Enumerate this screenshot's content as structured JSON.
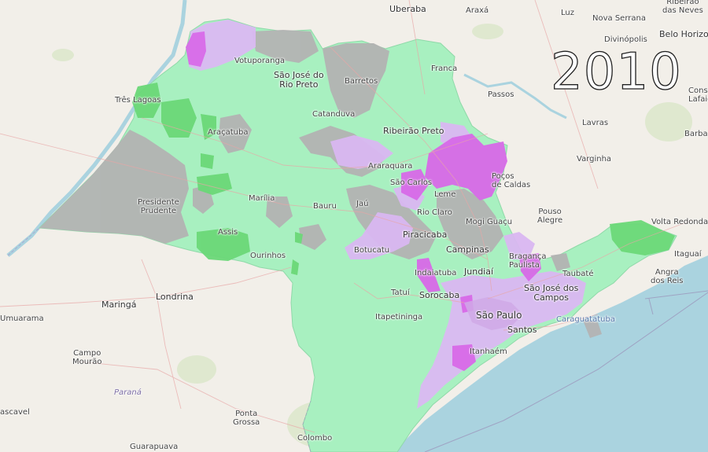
{
  "year": "2010",
  "colors": {
    "background": "#f2efe9",
    "ocean": "#aad3df",
    "light_green": "#a8f0c0",
    "dark_green": "#6bd878",
    "gray": "#b3b3b3",
    "light_purple": "#dab8f2",
    "dark_purple": "#d86ae8",
    "urban": "#d0a9e6"
  },
  "cities": [
    {
      "id": "uberaba",
      "name": "Uberaba",
      "cls": "big"
    },
    {
      "id": "araxa",
      "name": "Araxá",
      "cls": ""
    },
    {
      "id": "luz",
      "name": "Luz",
      "cls": ""
    },
    {
      "id": "nova-serrana",
      "name": "Nova Serrana",
      "cls": ""
    },
    {
      "id": "ribeirao-das-neves",
      "name": "Ribeirão\ndas Neves",
      "cls": "center"
    },
    {
      "id": "divinopolis",
      "name": "Divinópolis",
      "cls": ""
    },
    {
      "id": "belo-horizonte",
      "name": "Belo Horizo",
      "cls": "big"
    },
    {
      "id": "votuporanga",
      "name": "Votuporanga",
      "cls": ""
    },
    {
      "id": "sao-jose-rio-preto",
      "name": "São José do\nRio Preto",
      "cls": "big center"
    },
    {
      "id": "franca",
      "name": "Franca",
      "cls": ""
    },
    {
      "id": "barretos",
      "name": "Barretos",
      "cls": ""
    },
    {
      "id": "passos",
      "name": "Passos",
      "cls": ""
    },
    {
      "id": "conselheiro-lafaiete",
      "name": "Consel\nLafaie",
      "cls": ""
    },
    {
      "id": "tres-lagoas",
      "name": "Três Lagoas",
      "cls": ""
    },
    {
      "id": "catanduva",
      "name": "Catanduva",
      "cls": ""
    },
    {
      "id": "lavras",
      "name": "Lavras",
      "cls": ""
    },
    {
      "id": "barbacena",
      "name": "Barba",
      "cls": ""
    },
    {
      "id": "aracatuba",
      "name": "Araçatuba",
      "cls": ""
    },
    {
      "id": "ribeirao-preto",
      "name": "Ribeirão Preto",
      "cls": "big"
    },
    {
      "id": "varginha",
      "name": "Varginha",
      "cls": ""
    },
    {
      "id": "araraquara",
      "name": "Araraquara",
      "cls": ""
    },
    {
      "id": "sao-carlos",
      "name": "São Carlos",
      "cls": ""
    },
    {
      "id": "pocos-de-caldas",
      "name": "Poços\nde Caldas",
      "cls": ""
    },
    {
      "id": "leme",
      "name": "Leme",
      "cls": ""
    },
    {
      "id": "presidente-prudente",
      "name": "Presidente\nPrudente",
      "cls": "center"
    },
    {
      "id": "marilia",
      "name": "Marília",
      "cls": ""
    },
    {
      "id": "bauru",
      "name": "Bauru",
      "cls": ""
    },
    {
      "id": "jau",
      "name": "Jaú",
      "cls": ""
    },
    {
      "id": "rio-claro",
      "name": "Rio Claro",
      "cls": ""
    },
    {
      "id": "mogi-guacu",
      "name": "Mogi Guaçu",
      "cls": ""
    },
    {
      "id": "pouso-alegre",
      "name": "Pouso\nAlegre",
      "cls": "center"
    },
    {
      "id": "volta-redonda",
      "name": "Volta Redonda",
      "cls": ""
    },
    {
      "id": "assis",
      "name": "Assis",
      "cls": ""
    },
    {
      "id": "piracicaba",
      "name": "Piracicaba",
      "cls": "big"
    },
    {
      "id": "ourinhos",
      "name": "Ourinhos",
      "cls": ""
    },
    {
      "id": "botucatu",
      "name": "Botucatu",
      "cls": ""
    },
    {
      "id": "campinas",
      "name": "Campinas",
      "cls": "big"
    },
    {
      "id": "braganca-paulista",
      "name": "Bragança\nPaulista",
      "cls": ""
    },
    {
      "id": "itaguai",
      "name": "Itaguaí",
      "cls": ""
    },
    {
      "id": "jundiai",
      "name": "Jundiaí",
      "cls": "big"
    },
    {
      "id": "indaiatuba",
      "name": "Indaiatuba",
      "cls": ""
    },
    {
      "id": "taubate",
      "name": "Taubaté",
      "cls": ""
    },
    {
      "id": "angra-dos-reis",
      "name": "Angra\ndos Reis",
      "cls": "center"
    },
    {
      "id": "sao-jose-dos-campos",
      "name": "São José dos\nCampos",
      "cls": "big center"
    },
    {
      "id": "maringa",
      "name": "Maringá",
      "cls": "big"
    },
    {
      "id": "londrina",
      "name": "Londrina",
      "cls": "big"
    },
    {
      "id": "tatui",
      "name": "Tatuí",
      "cls": ""
    },
    {
      "id": "sorocaba",
      "name": "Sorocaba",
      "cls": "big"
    },
    {
      "id": "umuarama",
      "name": "Umuarama",
      "cls": ""
    },
    {
      "id": "itapetininga",
      "name": "Itapetininga",
      "cls": ""
    },
    {
      "id": "sao-paulo",
      "name": "São Paulo",
      "cls": "huge"
    },
    {
      "id": "caraguatatuba",
      "name": "Caraguatatuba",
      "cls": "water"
    },
    {
      "id": "santos",
      "name": "Santos",
      "cls": "big"
    },
    {
      "id": "campo-mourao",
      "name": "Campo\nMourão",
      "cls": "center"
    },
    {
      "id": "itanhaem",
      "name": "Itanhaém",
      "cls": ""
    },
    {
      "id": "parana",
      "name": "Paraná",
      "cls": "state"
    },
    {
      "id": "cascavel",
      "name": "ascavel",
      "cls": ""
    },
    {
      "id": "ponta-grossa",
      "name": "Ponta\nGrossa",
      "cls": "center"
    },
    {
      "id": "colombo",
      "name": "Colombo",
      "cls": ""
    },
    {
      "id": "guarapuava",
      "name": "Guarapuava",
      "cls": ""
    }
  ]
}
